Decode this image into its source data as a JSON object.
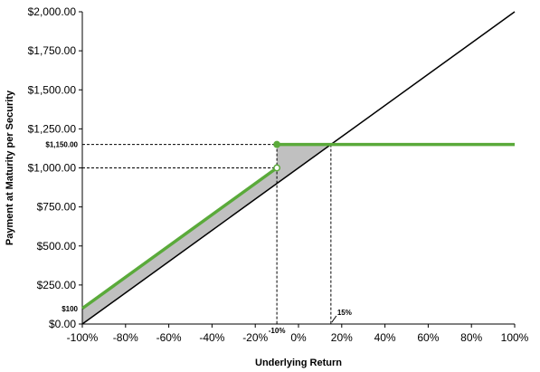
{
  "chart_data": {
    "type": "line",
    "title": "",
    "xlabel": "Underlying Return",
    "ylabel": "Payment at Maturity per Security",
    "xlim": [
      -100,
      100
    ],
    "ylim": [
      0,
      2000
    ],
    "x_ticks": [
      -100,
      -80,
      -60,
      -40,
      -20,
      0,
      20,
      40,
      60,
      80,
      100
    ],
    "x_tick_labels": [
      "-100%",
      "-80%",
      "-60%",
      "-40%",
      "-20%",
      "0%",
      "20%",
      "40%",
      "60%",
      "80%",
      "100%"
    ],
    "y_ticks": [
      0,
      250,
      500,
      750,
      1000,
      1250,
      1500,
      1750,
      2000
    ],
    "y_tick_labels": [
      "$0.00",
      "$250.00",
      "$500.00",
      "$750.00",
      "$1,000.00",
      "$1,250.00",
      "$1,500.00",
      "$1,750.00",
      "$2,000.00"
    ],
    "grid": false,
    "legend": "none",
    "series": [
      {
        "color": "#000000",
        "x": [
          -100,
          100
        ],
        "y": [
          0,
          2000
        ]
      },
      {
        "color": "#5aaa3a",
        "x": [
          -100,
          -10
        ],
        "y": [
          100,
          1000
        ]
      },
      {
        "color": "#5aaa3a",
        "x": [
          -10,
          15,
          100
        ],
        "y": [
          1150,
          1150,
          1150
        ]
      }
    ],
    "shaded_regions": [
      {
        "color": "#c0c0c0",
        "x": [
          -100,
          -10
        ],
        "upper": [
          100,
          1000
        ],
        "lower": [
          0,
          900
        ]
      },
      {
        "color": "#c0c0c0",
        "x": [
          -10,
          15
        ],
        "upper": [
          1150,
          1150
        ],
        "lower": [
          900,
          1150
        ]
      }
    ],
    "markers": [
      {
        "x": -10,
        "y": 1150,
        "style": "filled",
        "color": "#5aaa3a"
      },
      {
        "x": -10,
        "y": 1000,
        "style": "open",
        "color": "#5aaa3a"
      }
    ],
    "reference_lines": [
      {
        "from": [
          -100,
          1150
        ],
        "to": [
          -10,
          1150
        ]
      },
      {
        "from": [
          -100,
          1000
        ],
        "to": [
          -10,
          1000
        ]
      },
      {
        "from": [
          -10,
          1150
        ],
        "to": [
          -10,
          0
        ]
      },
      {
        "from": [
          15,
          1150
        ],
        "to": [
          15,
          0
        ]
      }
    ],
    "annotations": [
      {
        "text": "$1,150.00",
        "x": -100,
        "y": 1150,
        "anchor": "left-outside"
      },
      {
        "text": "$100",
        "x": -100,
        "y": 100,
        "anchor": "left-outside"
      },
      {
        "text": "-10%",
        "x": -10,
        "y": 0,
        "anchor": "below"
      },
      {
        "text": "15%",
        "x": 15,
        "y": 0,
        "anchor": "above-right"
      }
    ]
  }
}
